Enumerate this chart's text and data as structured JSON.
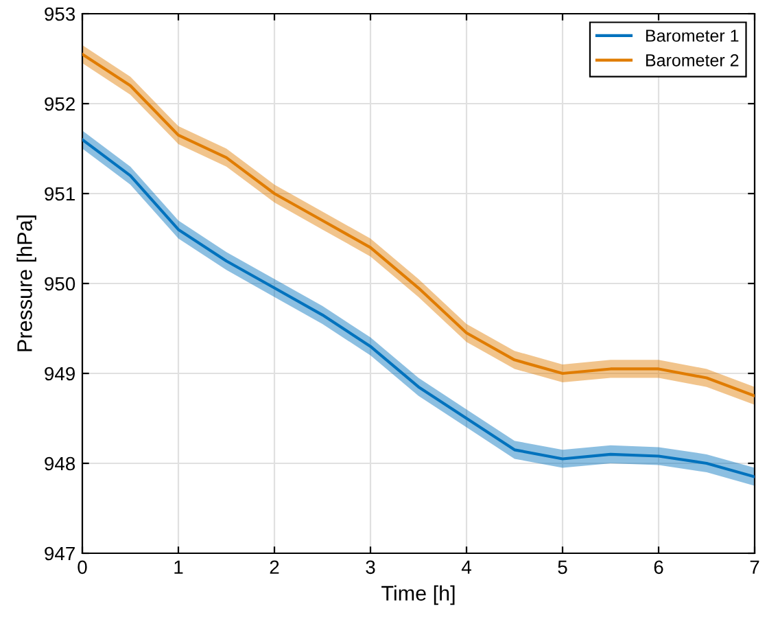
{
  "chart_data": {
    "type": "line",
    "xlabel": "Time [h]",
    "ylabel": "Pressure [hPa]",
    "x": [
      0,
      0.5,
      1,
      1.5,
      2,
      2.5,
      3,
      3.5,
      4,
      4.5,
      5,
      5.5,
      6,
      6.5,
      7
    ],
    "series": [
      {
        "name": "Barometer 1",
        "color": "#0072bd",
        "values": [
          951.6,
          951.2,
          950.6,
          950.25,
          949.95,
          949.65,
          949.3,
          948.85,
          948.5,
          948.15,
          948.05,
          948.1,
          948.08,
          948.0,
          947.85
        ],
        "lower": [
          951.5,
          951.1,
          950.5,
          950.15,
          949.85,
          949.55,
          949.2,
          948.75,
          948.4,
          948.05,
          947.95,
          948.0,
          947.98,
          947.9,
          947.75
        ],
        "upper": [
          951.7,
          951.3,
          950.7,
          950.35,
          950.05,
          949.75,
          949.4,
          948.95,
          948.6,
          948.25,
          948.15,
          948.2,
          948.18,
          948.1,
          947.95
        ]
      },
      {
        "name": "Barometer 2",
        "color": "#e07c00",
        "values": [
          952.55,
          952.2,
          951.65,
          951.4,
          951.0,
          950.7,
          950.4,
          949.95,
          949.45,
          949.15,
          949.0,
          949.05,
          949.05,
          948.95,
          948.75
        ],
        "lower": [
          952.45,
          952.1,
          951.55,
          951.3,
          950.9,
          950.6,
          950.3,
          949.85,
          949.35,
          949.05,
          948.9,
          948.95,
          948.95,
          948.85,
          948.65
        ],
        "upper": [
          952.65,
          952.3,
          951.75,
          951.5,
          951.1,
          950.8,
          950.5,
          950.05,
          949.55,
          949.25,
          949.1,
          949.15,
          949.15,
          949.05,
          948.85
        ]
      }
    ],
    "xlim": [
      0,
      7
    ],
    "xticks": [
      0,
      1,
      2,
      3,
      4,
      5,
      6,
      7
    ],
    "ylim": [
      947,
      953
    ],
    "yticks": [
      947,
      948,
      949,
      950,
      951,
      952,
      953
    ],
    "grid": true,
    "legend": "top right"
  }
}
